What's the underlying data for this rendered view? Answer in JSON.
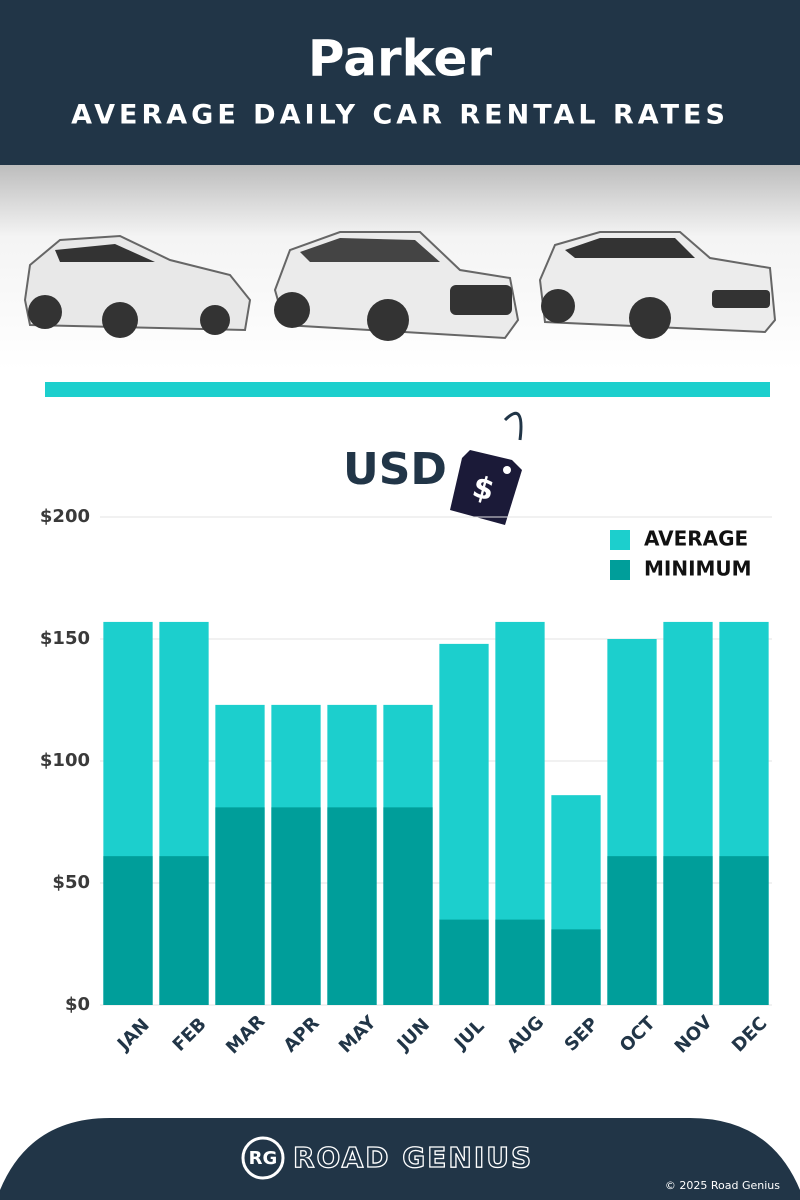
{
  "chart_data": {
    "type": "bar",
    "title": "Parker",
    "subtitle": "AVERAGE DAILY CAR RENTAL RATES",
    "currency_label": "USD",
    "tag_symbol": "$",
    "categories": [
      "JAN",
      "FEB",
      "MAR",
      "APR",
      "MAY",
      "JUN",
      "JUL",
      "AUG",
      "SEP",
      "OCT",
      "NOV",
      "DEC"
    ],
    "series": [
      {
        "name": "AVERAGE",
        "color": "#1ccfcd",
        "values": [
          157,
          157,
          123,
          123,
          123,
          123,
          148,
          157,
          86,
          150,
          157,
          157
        ]
      },
      {
        "name": "MINIMUM",
        "color": "#009e9a",
        "values": [
          61,
          61,
          81,
          81,
          81,
          81,
          35,
          35,
          31,
          61,
          61,
          61
        ]
      }
    ],
    "ylim": [
      0,
      200
    ],
    "yticks": [
      {
        "value": 0,
        "label": "$0"
      },
      {
        "value": 50,
        "label": "$50"
      },
      {
        "value": 100,
        "label": "$100"
      },
      {
        "value": 150,
        "label": "$150"
      },
      {
        "value": 200,
        "label": "$200"
      }
    ],
    "grid": true,
    "legend": "top-right"
  },
  "footer": {
    "logo": "RG",
    "brand": "ROAD GENIUS",
    "copyright": "© 2025 Road Genius"
  }
}
